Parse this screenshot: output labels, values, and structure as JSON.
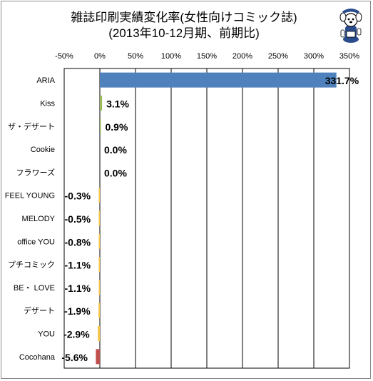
{
  "chart_data": {
    "type": "bar",
    "orientation": "horizontal",
    "title": "雑誌印刷実績変化率(女性向けコミック誌)",
    "subtitle": "(2013年10-12月期、前期比)",
    "xlim": [
      -50,
      350
    ],
    "xticks": [
      "-50%",
      "0%",
      "50%",
      "100%",
      "150%",
      "200%",
      "250%",
      "300%",
      "350%"
    ],
    "tick_values": [
      -50,
      0,
      50,
      100,
      150,
      200,
      250,
      300,
      350
    ],
    "grid": true,
    "categories": [
      "ARIA",
      "Kiss",
      "ザ・デザート",
      "Cookie",
      "フラワーズ",
      "FEEL YOUNG",
      "MELODY",
      "office YOU",
      "プチコミック",
      "BE・ LOVE",
      "デザート",
      "YOU",
      "Cocohana"
    ],
    "values": [
      331.7,
      3.1,
      0.9,
      0.0,
      0.0,
      -0.3,
      -0.5,
      -0.8,
      -1.1,
      -1.1,
      -1.9,
      -2.9,
      -5.6
    ],
    "labels": [
      "331.7%",
      "3.1%",
      "0.9%",
      "0.0%",
      "0.0%",
      "-0.3%",
      "-0.5%",
      "-0.8%",
      "-1.1%",
      "-1.1%",
      "-1.9%",
      "-2.9%",
      "-5.6%"
    ],
    "colors": {
      "positive_top": "#4f81bd",
      "positive": "#9bbb59",
      "negative": "#f7c646",
      "negative_bottom": "#c0504d"
    }
  },
  "mascot_icon": "cartoon-dog-mascot-icon"
}
